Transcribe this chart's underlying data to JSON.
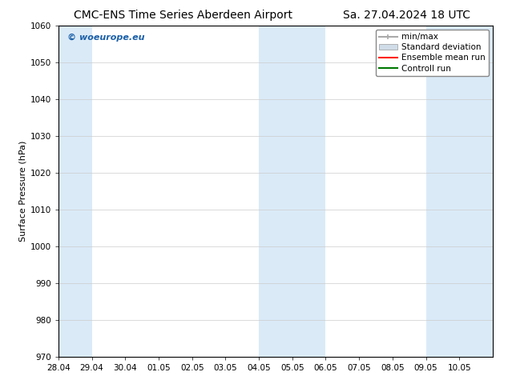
{
  "title_left": "CMC-ENS Time Series Aberdeen Airport",
  "title_right": "Sa. 27.04.2024 18 UTC",
  "ylabel": "Surface Pressure (hPa)",
  "ylim": [
    970,
    1060
  ],
  "yticks": [
    970,
    980,
    990,
    1000,
    1010,
    1020,
    1030,
    1040,
    1050,
    1060
  ],
  "x_start": "2024-04-28",
  "x_end": "2024-05-11",
  "x_tick_labels": [
    "28.04",
    "29.04",
    "30.04",
    "01.05",
    "02.05",
    "03.05",
    "04.05",
    "05.05",
    "06.05",
    "07.05",
    "08.05",
    "09.05",
    "10.05"
  ],
  "shaded_bands": [
    {
      "start": "2024-04-28",
      "end": "2024-04-29",
      "color": "#daeaf7"
    },
    {
      "start": "2024-05-04",
      "end": "2024-05-06",
      "color": "#daeaf7"
    },
    {
      "start": "2024-05-09",
      "end": "2024-05-11",
      "color": "#daeaf7"
    }
  ],
  "watermark_text": "© woeurope.eu",
  "watermark_color": "#1a5fa8",
  "background_color": "#ffffff",
  "plot_bg_color": "#ffffff",
  "grid_color": "#cccccc",
  "title_fontsize": 10,
  "axis_label_fontsize": 8,
  "tick_fontsize": 7.5,
  "legend_fontsize": 7.5,
  "watermark_fontsize": 8
}
